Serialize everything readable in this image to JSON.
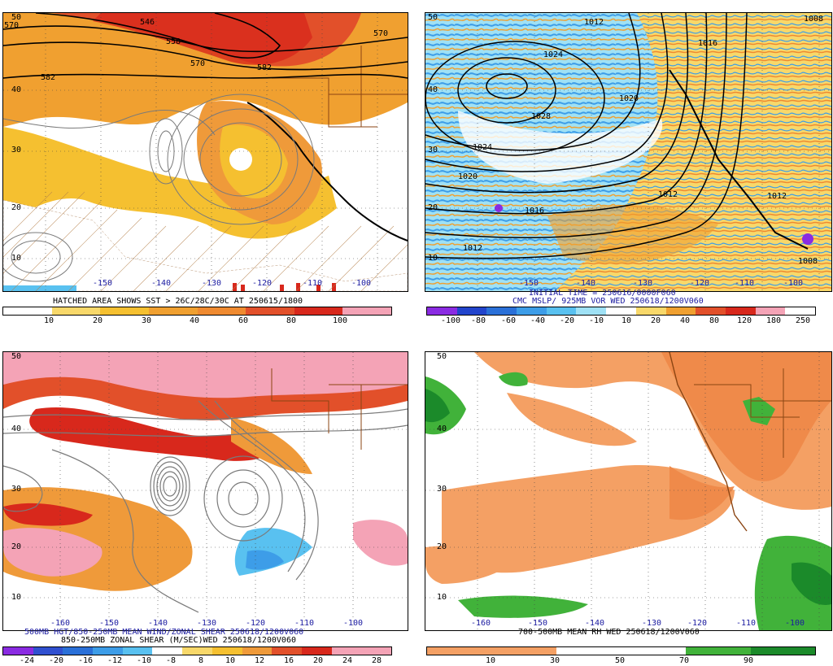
{
  "colors": {
    "orange_light": "#f5c030",
    "orange": "#ef9a3a",
    "dark_orange": "#e2502a",
    "red": "#d8281c",
    "pink": "#f4a3b6",
    "blue": "#4aa3e8",
    "cyan": "#59d1f0",
    "green": "#41b23a",
    "dark_green": "#1b8a2a",
    "rh_orange": "#f4a064"
  },
  "panels": {
    "top_left": {
      "caption_line1": "HATCHED AREA SHOWS SST > 26C/28C/30C AT 250615/1800",
      "colorbar_ticks": [
        "10",
        "20",
        "30",
        "40",
        "60",
        "80",
        "100"
      ],
      "colorbar_colors": [
        "#ffffff",
        "#f8d86a",
        "#f5c030",
        "#f0a030",
        "#ef8a30",
        "#e2502a",
        "#d8281c",
        "#f4a3b6"
      ],
      "contour_labels": [
        "546",
        "558",
        "570",
        "570",
        "582",
        "582",
        "570"
      ],
      "lat_labels": [
        "50",
        "40",
        "30",
        "20",
        "10"
      ],
      "lon_labels": [
        "-150",
        "-140",
        "-130",
        "-120",
        "-110",
        "-100"
      ]
    },
    "top_right": {
      "caption_line1": "INITIAL TIME = 250616/0000F060",
      "caption_line2": "CMC MSLP/ 925MB VOR WED 250618/1200V060",
      "colorbar_ticks": [
        "-100",
        "-80",
        "-60",
        "-40",
        "-20",
        "-10",
        "10",
        "20",
        "40",
        "80",
        "120",
        "180",
        "250"
      ],
      "colorbar_colors": [
        "#8a2be2",
        "#2244cc",
        "#2a70d8",
        "#3d9de8",
        "#59c1f0",
        "#9fe1f5",
        "#ffffff",
        "#f8d86a",
        "#f0a030",
        "#e2502a",
        "#d8281c",
        "#f4a3b6",
        "#ffffff"
      ],
      "isobar_labels": [
        "1008",
        "1012",
        "1016",
        "1024",
        "1020",
        "1028",
        "1024",
        "1020",
        "1016",
        "1012",
        "1012",
        "1008",
        "1016",
        "1020",
        "1012",
        "1008",
        "1012",
        "1012",
        "1008"
      ],
      "lat_labels": [
        "50",
        "40",
        "30",
        "20",
        "10"
      ],
      "lon_labels": [
        "-150",
        "-140",
        "-130",
        "-120",
        "-110",
        "-100"
      ]
    },
    "bottom_left": {
      "caption_line1": "500MB HGT/850-250MB MEAN WIND/ZONAL SHEAR 250618/1200V060",
      "caption_line2": "850-250MB ZONAL SHEAR (M/SEC)WED 250618/1200V060",
      "colorbar_ticks": [
        "-24",
        "-20",
        "-16",
        "-12",
        "-10",
        "-8",
        "8",
        "10",
        "12",
        "16",
        "20",
        "24",
        "28"
      ],
      "colorbar_colors": [
        "#8a2be2",
        "#3050d0",
        "#2a70d8",
        "#3d9de8",
        "#59c1f0",
        "#ffffff",
        "#f8d86a",
        "#f5c030",
        "#ef9a3a",
        "#e2502a",
        "#d8281c",
        "#f4a3b6",
        "#f4a3b6"
      ],
      "lat_labels": [
        "50",
        "40",
        "30",
        "20",
        "10"
      ],
      "lon_labels": [
        "-160",
        "-150",
        "-140",
        "-130",
        "-120",
        "-110",
        "-100"
      ]
    },
    "bottom_right": {
      "caption_line1": "700-500MB MEAN RH WED 250618/1200V060",
      "colorbar_ticks": [
        "10",
        "30",
        "50",
        "70",
        "90"
      ],
      "colorbar_colors": [
        "#f4a064",
        "#f4a064",
        "#ffffff",
        "#ffffff",
        "#41b23a",
        "#1b8a2a"
      ],
      "lat_labels": [
        "50",
        "40",
        "30",
        "20",
        "10"
      ],
      "lon_labels": [
        "-160",
        "-150",
        "-140",
        "-130",
        "-120",
        "-110",
        "-100"
      ]
    }
  }
}
